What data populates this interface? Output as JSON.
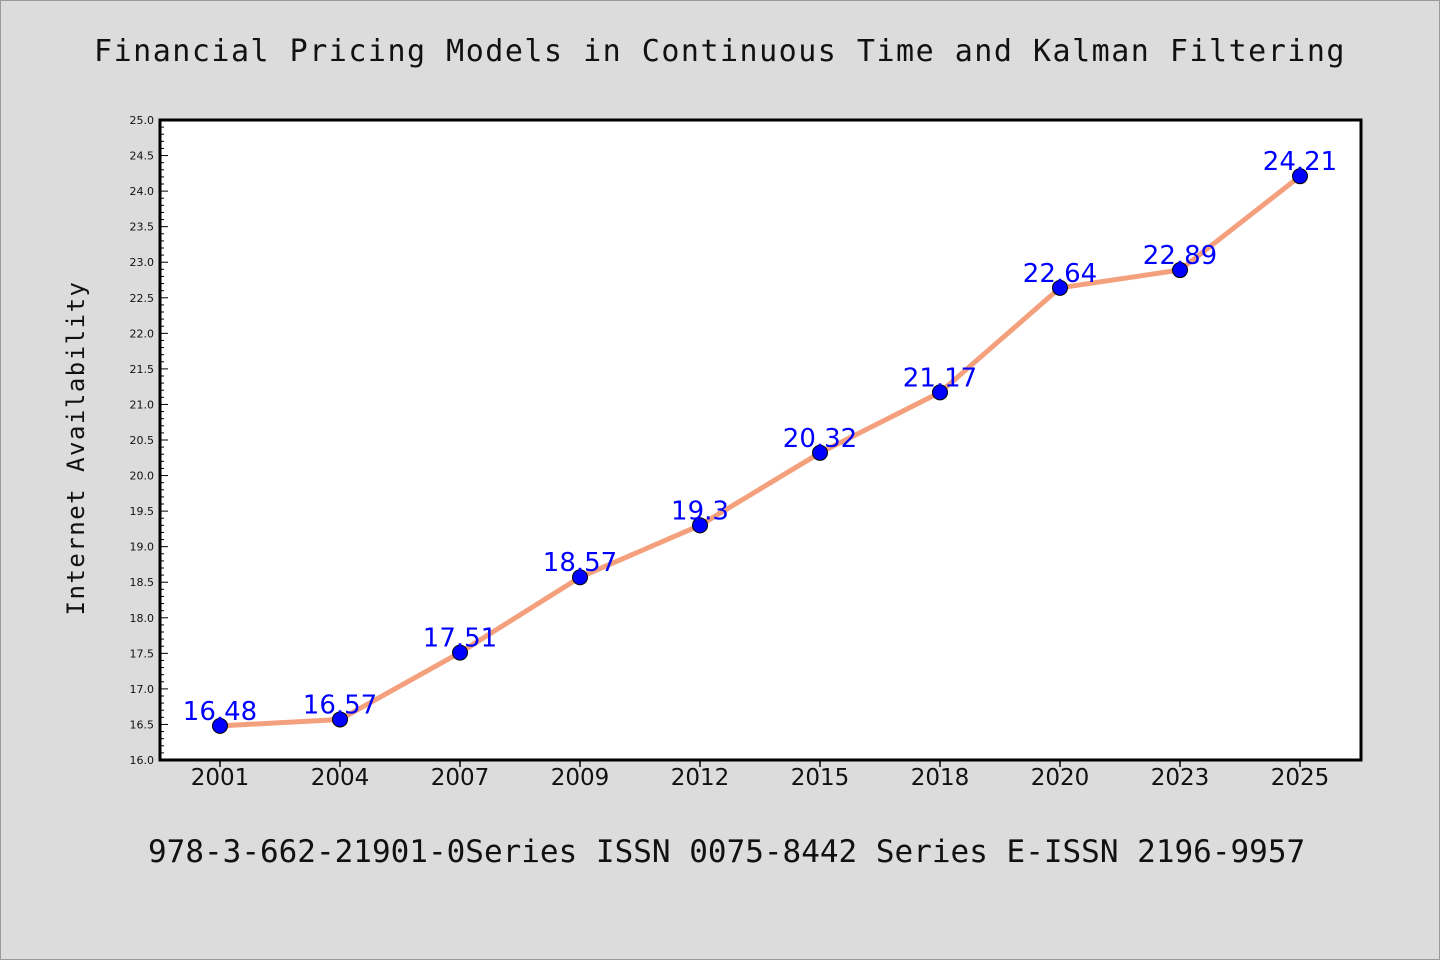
{
  "colors": {
    "background": "#dcdcdc",
    "plot_background": "#ffffff",
    "line": "#f4a07c",
    "marker": "#0000ff",
    "data_label": "#0000ff"
  },
  "chart_data": {
    "type": "line",
    "title": "Financial Pricing Models in Continuous Time and Kalman Filtering",
    "xlabel": "",
    "ylabel": "Internet Availability",
    "categories": [
      "2001",
      "2004",
      "2007",
      "2009",
      "2012",
      "2015",
      "2018",
      "2020",
      "2023",
      "2025"
    ],
    "series": [
      {
        "values": [
          16.48,
          16.57,
          17.51,
          18.57,
          19.3,
          20.32,
          21.17,
          22.64,
          22.89,
          24.21
        ],
        "data_labels": [
          "16.48",
          "16.57",
          "17.51",
          "18.57",
          "19.3",
          "20.32",
          "21.17",
          "22.64",
          "22.89",
          "24.21"
        ]
      }
    ],
    "ylim": [
      16.0,
      25.0
    ],
    "y_ticks": [
      "16.0",
      "16.5",
      "17.0",
      "17.5",
      "18.0",
      "18.5",
      "19.0",
      "19.5",
      "20.0",
      "20.5",
      "21.0",
      "21.5",
      "22.0",
      "22.5",
      "23.0",
      "23.5",
      "24.0",
      "24.5",
      "25.0"
    ],
    "grid": false,
    "legend": false
  },
  "footer": "978-3-662-21901-0Series ISSN 0075-8442 Series E-ISSN 2196-9957"
}
